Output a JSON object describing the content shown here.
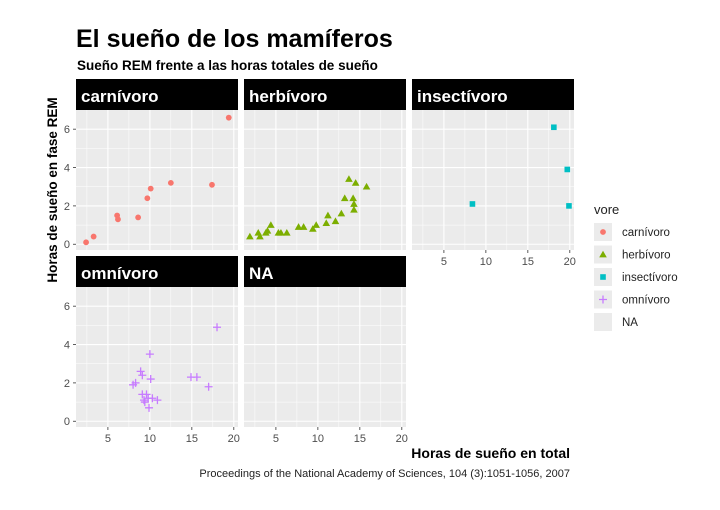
{
  "chart_data": {
    "type": "scatter",
    "title": "El sueño de los mamíferos",
    "subtitle": "Sueño REM frente a las horas totales de sueño",
    "xlabel": "Horas de sueño en total",
    "ylabel": "Horas de sueño en fase REM",
    "caption": "Proceedings of the National Academy of Sciences, 104 (3):1051-1056, 2007",
    "xlim": [
      1.2,
      20.5
    ],
    "ylim": [
      -0.3,
      7.0
    ],
    "x_ticks": [
      5,
      10,
      15,
      20
    ],
    "y_ticks": [
      0,
      2,
      4,
      6
    ],
    "grid": true,
    "legend_position": "right",
    "legend_title": "vore",
    "series": [
      {
        "name": "carnívoro",
        "facet": "carnívoro",
        "color": "#F8766D",
        "shape": "circle",
        "points": [
          {
            "x": 2.4,
            "y": 0.1
          },
          {
            "x": 3.3,
            "y": 0.4
          },
          {
            "x": 6.1,
            "y": 1.5
          },
          {
            "x": 6.2,
            "y": 1.3
          },
          {
            "x": 8.6,
            "y": 1.4
          },
          {
            "x": 9.7,
            "y": 2.4
          },
          {
            "x": 10.1,
            "y": 2.9
          },
          {
            "x": 12.5,
            "y": 3.2
          },
          {
            "x": 17.4,
            "y": 3.1
          },
          {
            "x": 19.4,
            "y": 6.6
          }
        ]
      },
      {
        "name": "herbívoro",
        "facet": "herbívoro",
        "color": "#7CAE00",
        "shape": "triangle",
        "points": [
          {
            "x": 1.9,
            "y": 0.4
          },
          {
            "x": 2.9,
            "y": 0.6
          },
          {
            "x": 3.1,
            "y": 0.4
          },
          {
            "x": 3.8,
            "y": 0.6
          },
          {
            "x": 4.0,
            "y": 0.7
          },
          {
            "x": 4.4,
            "y": 1.0
          },
          {
            "x": 5.3,
            "y": 0.6
          },
          {
            "x": 5.6,
            "y": 0.6
          },
          {
            "x": 6.3,
            "y": 0.6
          },
          {
            "x": 7.7,
            "y": 0.9
          },
          {
            "x": 8.3,
            "y": 0.9
          },
          {
            "x": 9.4,
            "y": 0.8
          },
          {
            "x": 9.8,
            "y": 1.0
          },
          {
            "x": 11.0,
            "y": 1.1
          },
          {
            "x": 11.2,
            "y": 1.5
          },
          {
            "x": 12.1,
            "y": 1.2
          },
          {
            "x": 12.8,
            "y": 1.6
          },
          {
            "x": 13.2,
            "y": 2.4
          },
          {
            "x": 13.7,
            "y": 3.4
          },
          {
            "x": 14.2,
            "y": 2.4
          },
          {
            "x": 14.3,
            "y": 2.1
          },
          {
            "x": 14.3,
            "y": 1.8
          },
          {
            "x": 14.5,
            "y": 3.2
          },
          {
            "x": 15.8,
            "y": 3.0
          }
        ]
      },
      {
        "name": "insectívoro",
        "facet": "insectívoro",
        "color": "#00BFC4",
        "shape": "square",
        "points": [
          {
            "x": 8.4,
            "y": 2.1
          },
          {
            "x": 18.1,
            "y": 6.1
          },
          {
            "x": 19.7,
            "y": 3.9
          },
          {
            "x": 19.9,
            "y": 2.0
          }
        ]
      },
      {
        "name": "omnívoro",
        "facet": "omnívoro",
        "color": "#C77CFF",
        "shape": "plus",
        "points": [
          {
            "x": 8.0,
            "y": 1.9
          },
          {
            "x": 8.3,
            "y": 2.0
          },
          {
            "x": 8.9,
            "y": 2.6
          },
          {
            "x": 9.1,
            "y": 2.4
          },
          {
            "x": 9.1,
            "y": 1.4
          },
          {
            "x": 9.3,
            "y": 1.1
          },
          {
            "x": 9.4,
            "y": 1.0
          },
          {
            "x": 9.6,
            "y": 1.4
          },
          {
            "x": 9.8,
            "y": 1.2
          },
          {
            "x": 9.9,
            "y": 0.7
          },
          {
            "x": 10.0,
            "y": 3.5
          },
          {
            "x": 10.1,
            "y": 2.2
          },
          {
            "x": 10.3,
            "y": 1.2
          },
          {
            "x": 10.9,
            "y": 1.1
          },
          {
            "x": 14.9,
            "y": 2.3
          },
          {
            "x": 15.6,
            "y": 2.3
          },
          {
            "x": 17.0,
            "y": 1.8
          },
          {
            "x": 18.0,
            "y": 4.9
          }
        ]
      },
      {
        "name": "NA",
        "facet": "NA",
        "color": "#ebebeb",
        "shape": "none",
        "points": []
      }
    ]
  },
  "colors": {
    "panel_background": "#ebebeb",
    "grid": "#ffffff",
    "strip_background": "#000000"
  }
}
